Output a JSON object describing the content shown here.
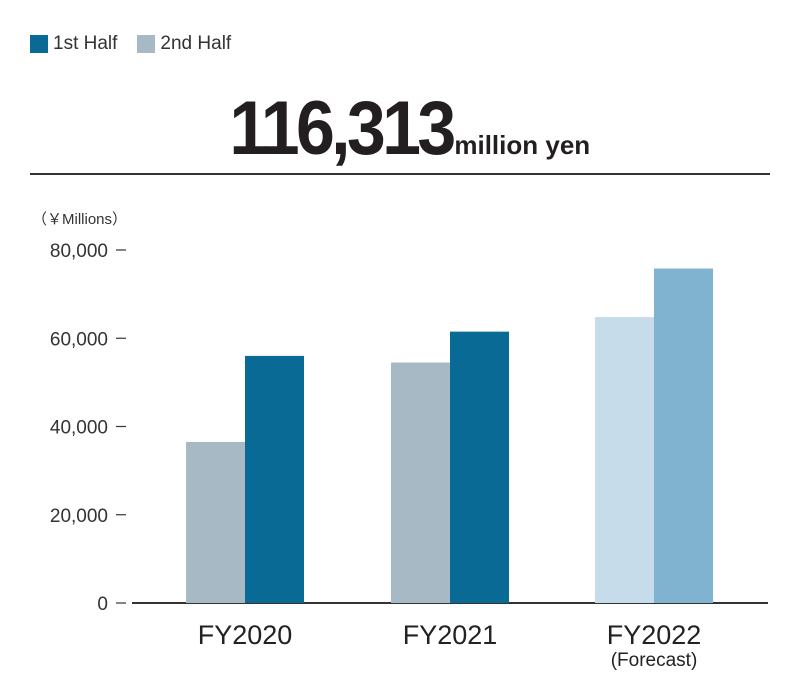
{
  "legend": {
    "first_half": "1st Half",
    "second_half": "2nd Half"
  },
  "headline": {
    "value": "116,313",
    "unit": "million yen"
  },
  "colors": {
    "first_half": "#0a6a96",
    "second_half": "#a7b9c5",
    "forecast_first_half": "#c6dcea",
    "forecast_second_half": "#7fb3cf",
    "axis": "#333333"
  },
  "chart_data": {
    "type": "bar",
    "unit_label": "（￥Millions）",
    "categories": [
      "FY2020",
      "FY2021",
      "FY2022"
    ],
    "category_notes": [
      "",
      "",
      "(Forecast)"
    ],
    "series": [
      {
        "name": "2nd Half",
        "values": [
          36500,
          54500,
          64800
        ]
      },
      {
        "name": "1st Half",
        "values": [
          56000,
          61500,
          75800
        ]
      }
    ],
    "ylim": [
      0,
      80000
    ],
    "yticks": [
      0,
      20000,
      40000,
      60000,
      80000
    ],
    "ytick_labels": [
      "0",
      "20,000",
      "40,000",
      "60,000",
      "80,000"
    ],
    "grid": false,
    "legend_position": "top-left"
  }
}
